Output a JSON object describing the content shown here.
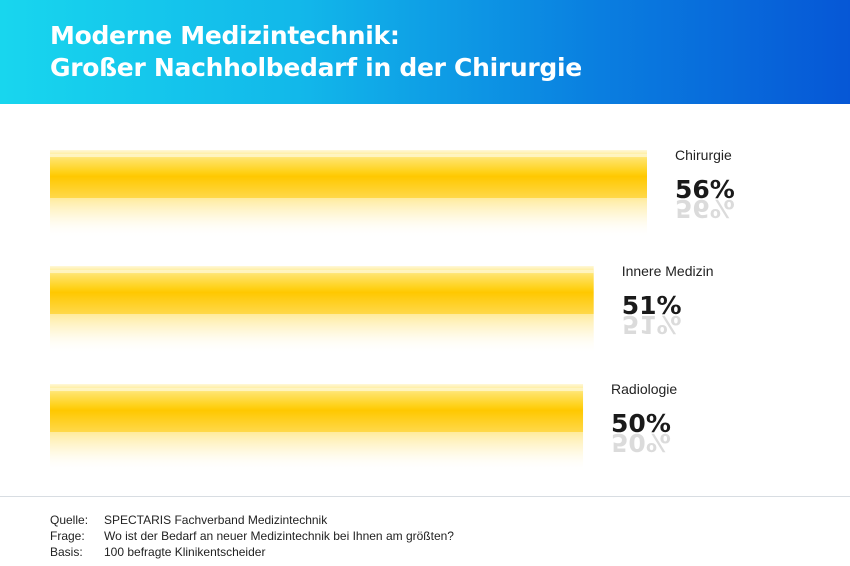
{
  "header": {
    "title_line1": "Moderne Medizintechnik:",
    "title_line2": "Großer Nachholbedarf in der Chirurgie"
  },
  "colors": {
    "bar": "#ffcc00",
    "bar_light": "#fff1b3",
    "header_left": "#18d6ee",
    "header_right": "#0657d6"
  },
  "chart_data": {
    "type": "bar",
    "orientation": "horizontal",
    "categories": [
      "Chirurgie",
      "Innere Medizin",
      "Radiologie"
    ],
    "values": [
      56,
      51,
      50
    ],
    "value_labels": [
      "56%",
      "51%",
      "50%"
    ],
    "unit": "%",
    "xlim": [
      0,
      100
    ],
    "title": "Moderne Medizintechnik: Großer Nachholbedarf in der Chirurgie",
    "xlabel": "",
    "ylabel": "",
    "grid": false,
    "legend": "none"
  },
  "notes": [
    {
      "label": "Quelle:",
      "text": "SPECTARIS Fachverband Medizintechnik"
    },
    {
      "label": "Frage:",
      "text": "Wo ist der Bedarf an neuer Medizintechnik bei Ihnen am größten?"
    },
    {
      "label": "Basis:",
      "text": "100 befragte Klinikentscheider"
    }
  ]
}
